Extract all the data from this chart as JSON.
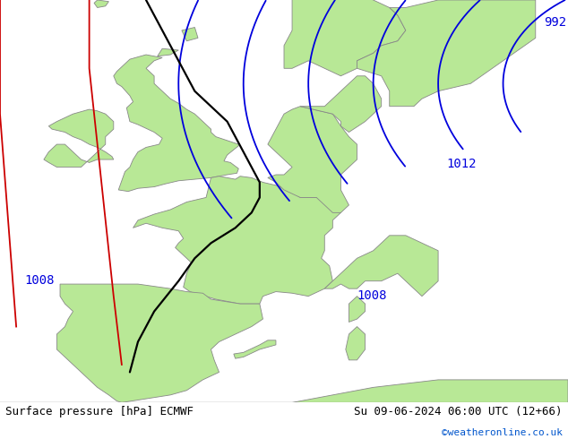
{
  "title_left": "Surface pressure [hPa] ECMWF",
  "title_right": "Su 09-06-2024 06:00 UTC (12+66)",
  "credit": "©weatheronline.co.uk",
  "bg_color": "#d8d8d8",
  "land_color": "#b8e896",
  "border_color": "#888888",
  "isobar_blue_color": "#0000dd",
  "isobar_black_color": "#000000",
  "isobar_red_color": "#cc0000",
  "font_size_labels": 10,
  "font_size_footer": 9,
  "xlim": [
    -13.0,
    22.0
  ],
  "ylim": [
    36.0,
    62.5
  ]
}
